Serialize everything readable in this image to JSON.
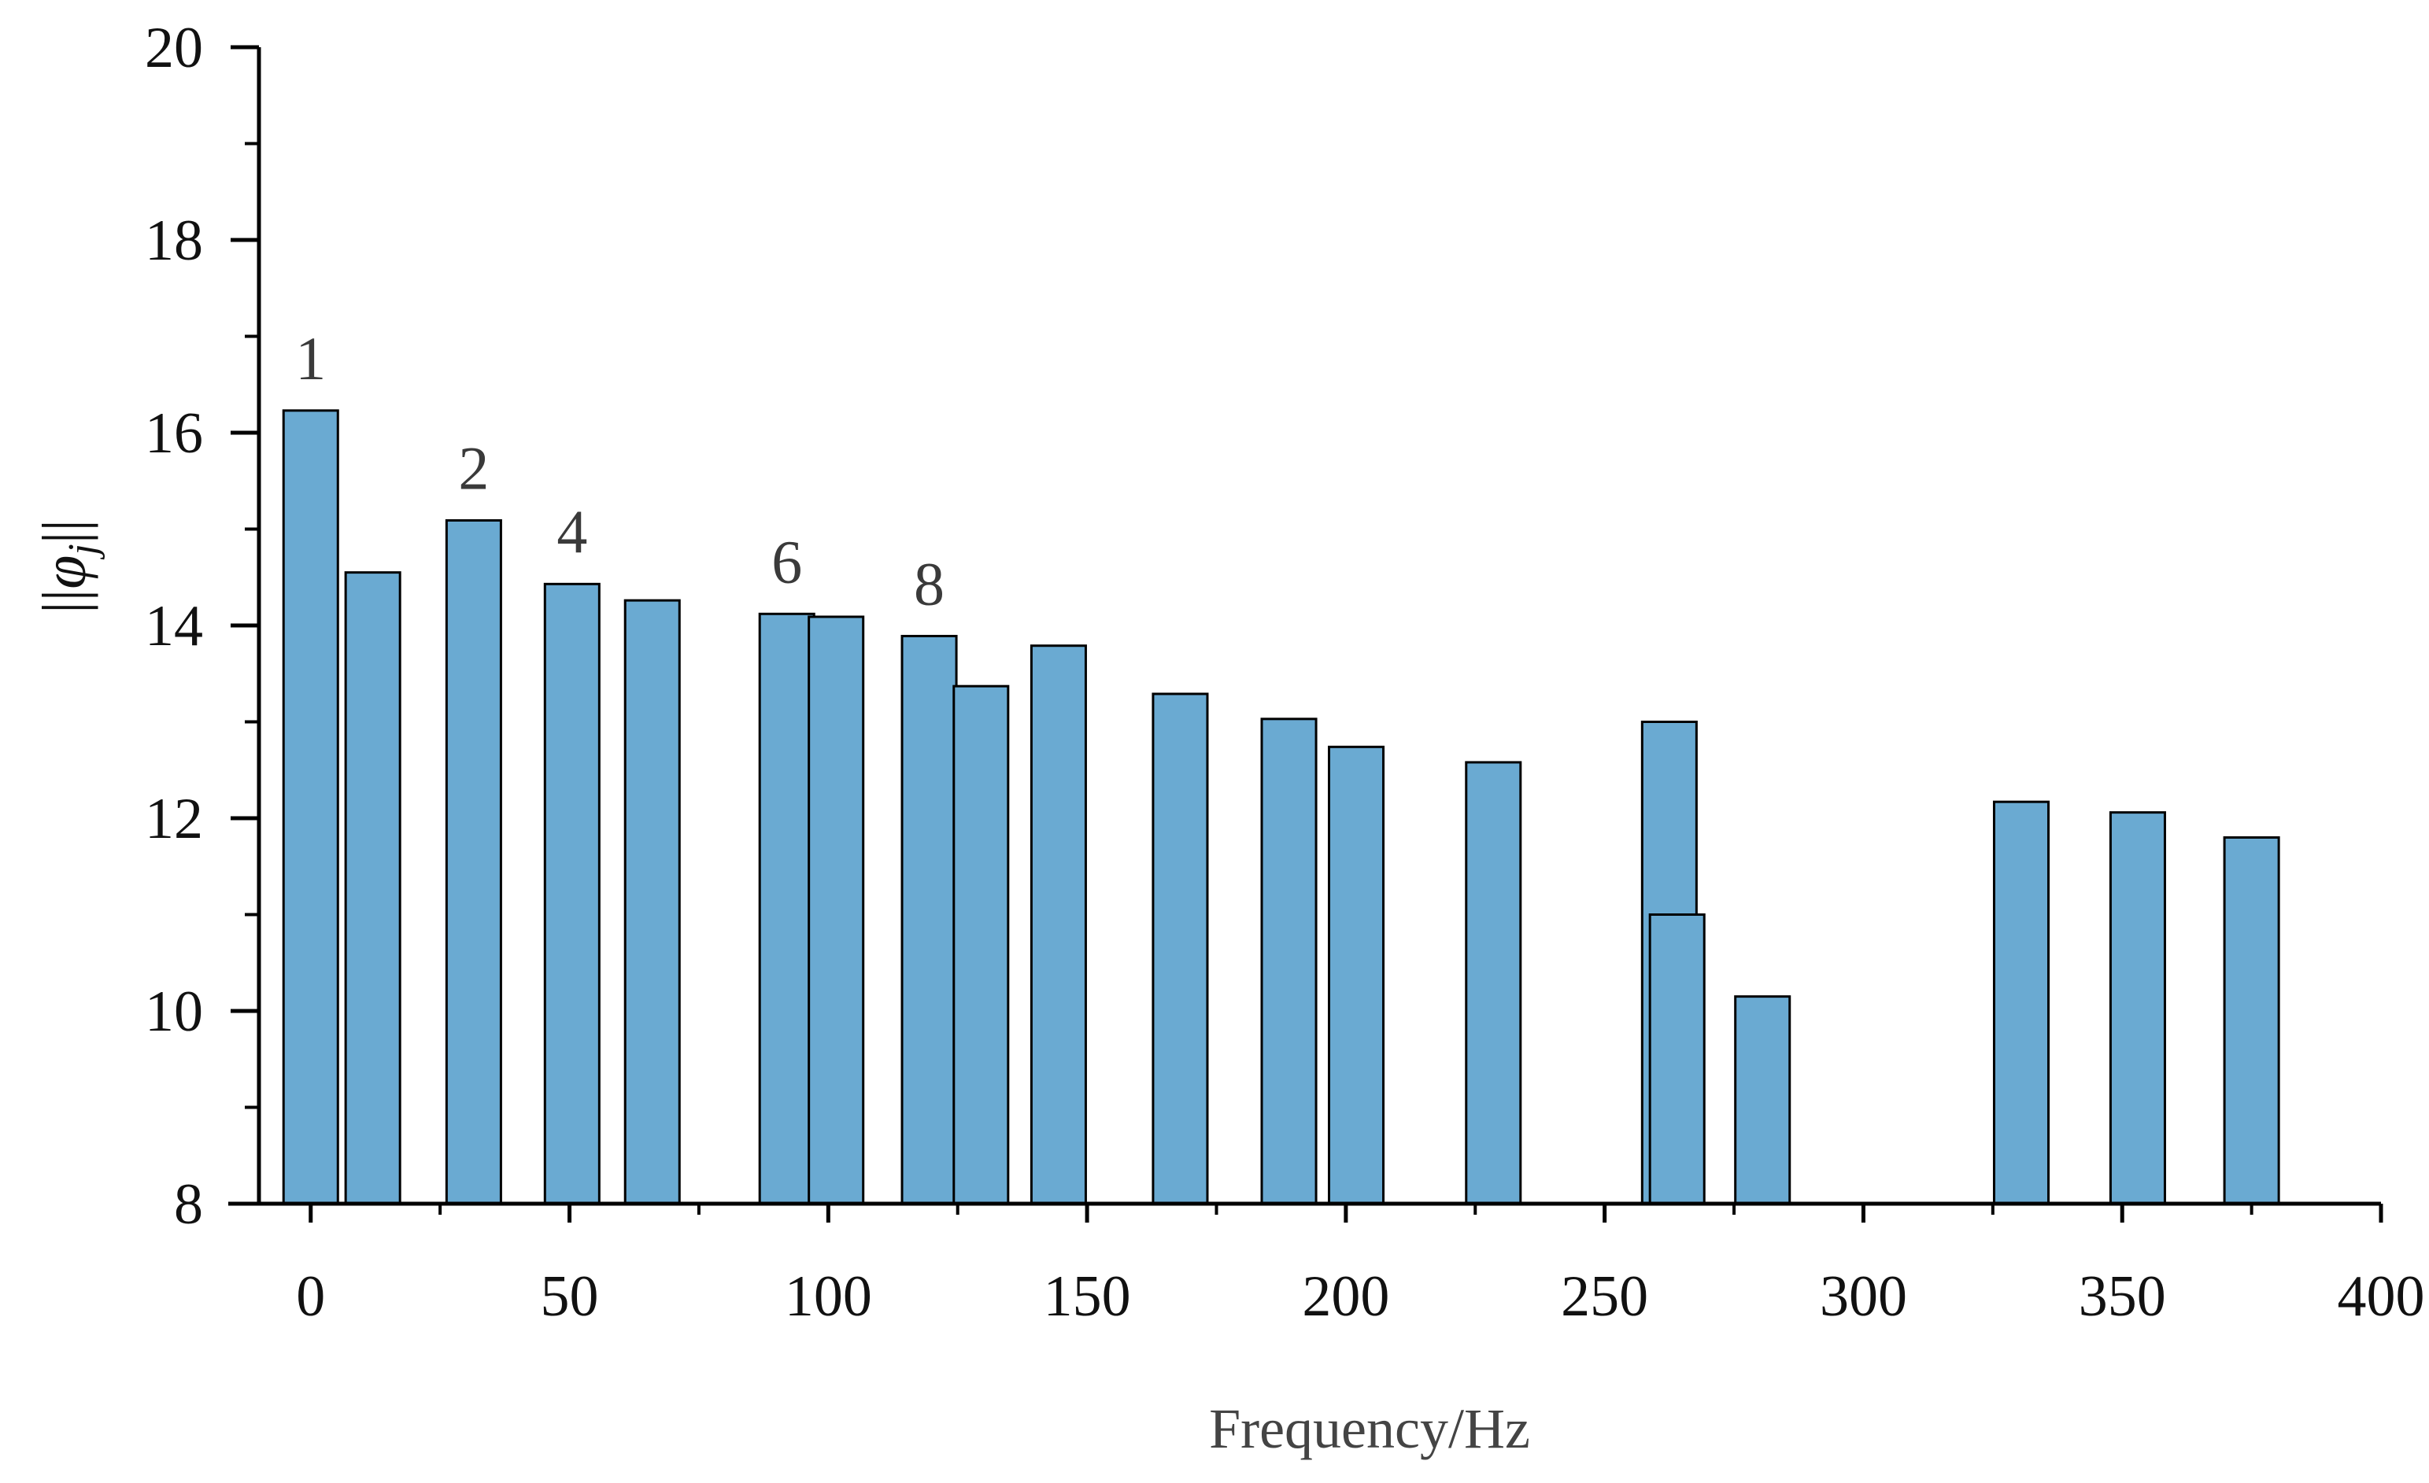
{
  "chart_data": {
    "type": "bar",
    "title": "",
    "xlabel": "Frequency/Hz",
    "ylabel": {
      "pre": "||",
      "phi": "φ",
      "sub": "j",
      "post": "||"
    },
    "xlim": [
      -10,
      400
    ],
    "ylim": [
      8,
      20
    ],
    "xticks": [
      0,
      50,
      100,
      150,
      200,
      250,
      300,
      350,
      400
    ],
    "yticks": [
      8,
      10,
      12,
      14,
      16,
      18,
      20
    ],
    "grid": false,
    "bar_color": "#6aaad2",
    "bar_width": 10.5,
    "bars": [
      {
        "x": 0,
        "y": 16.23,
        "label": "1"
      },
      {
        "x": 12,
        "y": 14.55
      },
      {
        "x": 31.5,
        "y": 15.09,
        "label": "2"
      },
      {
        "x": 50.5,
        "y": 14.43,
        "label": "4"
      },
      {
        "x": 66,
        "y": 14.26
      },
      {
        "x": 92,
        "y": 14.12,
        "label": "6"
      },
      {
        "x": 101.5,
        "y": 14.09
      },
      {
        "x": 119.5,
        "y": 13.89,
        "label": "8"
      },
      {
        "x": 129.5,
        "y": 13.37
      },
      {
        "x": 144.5,
        "y": 13.79
      },
      {
        "x": 168,
        "y": 13.29
      },
      {
        "x": 189,
        "y": 13.03
      },
      {
        "x": 202,
        "y": 12.74
      },
      {
        "x": 228.5,
        "y": 12.58
      },
      {
        "x": 262.5,
        "y": 13.0
      },
      {
        "x": 264,
        "y": 11.0
      },
      {
        "x": 280.5,
        "y": 10.15
      },
      {
        "x": 330.5,
        "y": 12.17
      },
      {
        "x": 353,
        "y": 12.06
      },
      {
        "x": 375,
        "y": 11.8
      }
    ]
  }
}
